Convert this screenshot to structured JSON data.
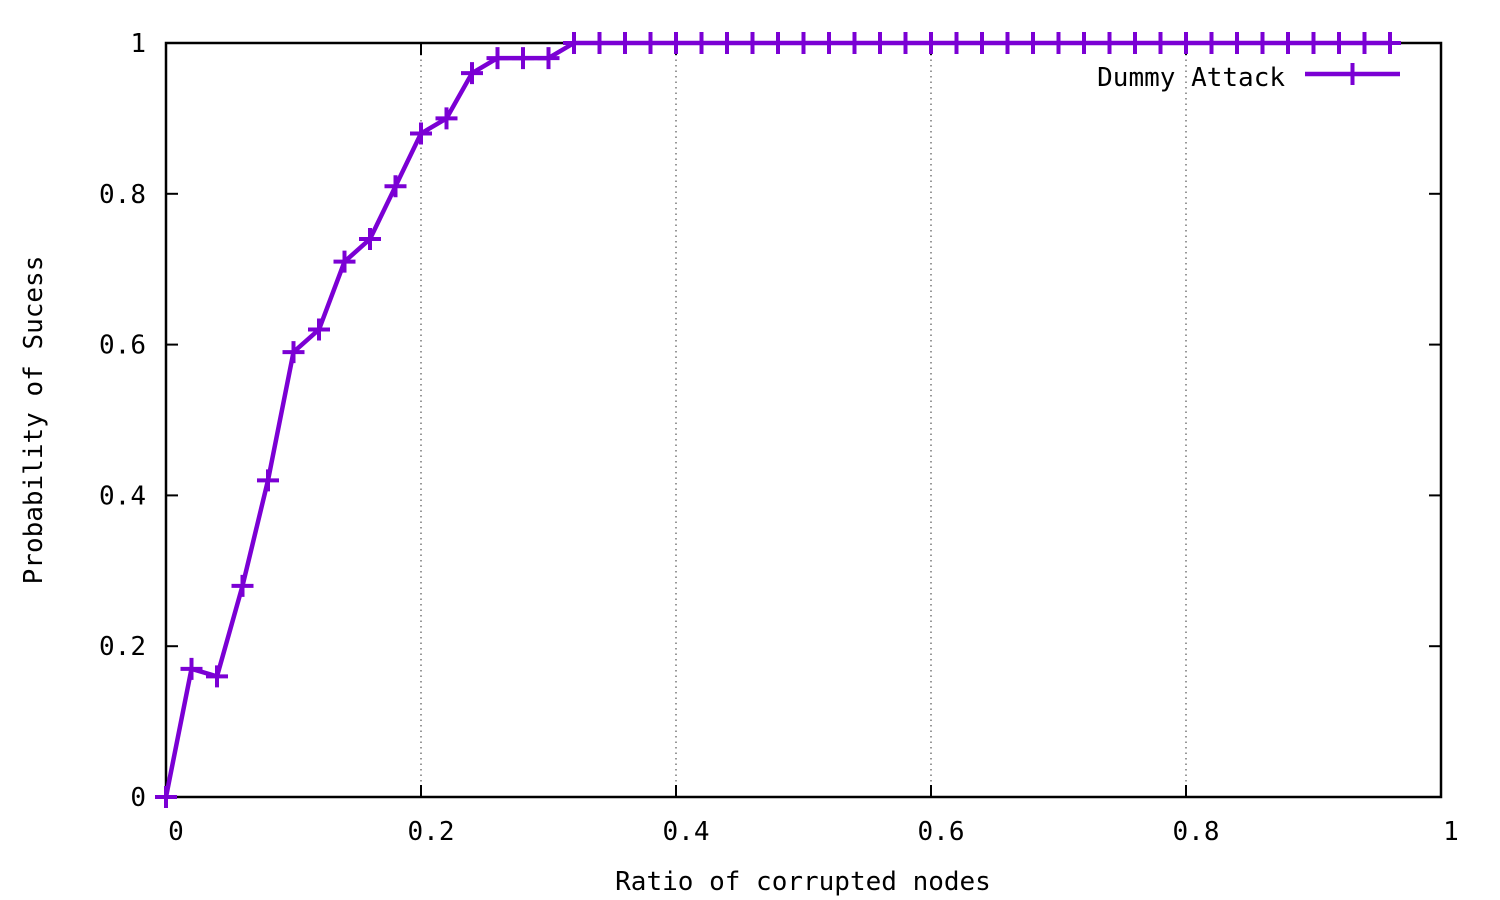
{
  "chart_data": {
    "type": "line",
    "xlabel": "Ratio of corrupted nodes",
    "ylabel": "Probability of Sucess",
    "xlim": [
      0,
      1
    ],
    "ylim": [
      0,
      1
    ],
    "x_ticks": [
      "0",
      "0.2",
      "0.4",
      "0.6",
      "0.8",
      "1"
    ],
    "y_ticks": [
      "0",
      "0.2",
      "0.4",
      "0.6",
      "0.8",
      "1"
    ],
    "grid": "vertical dotted",
    "legend_position": "top-right",
    "series": [
      {
        "name": "Dummy Attack",
        "color": "#7b00d4",
        "marker": "plus",
        "x": [
          0,
          0.02,
          0.04,
          0.06,
          0.08,
          0.1,
          0.12,
          0.14,
          0.16,
          0.18,
          0.2,
          0.22,
          0.24,
          0.26,
          0.28,
          0.3,
          0.32,
          0.34,
          0.36,
          0.38,
          0.4,
          0.42,
          0.44,
          0.46,
          0.48,
          0.5,
          0.52,
          0.54,
          0.56,
          0.58,
          0.6,
          0.62,
          0.64,
          0.66,
          0.68,
          0.7,
          0.72,
          0.74,
          0.76,
          0.78,
          0.8,
          0.82,
          0.84,
          0.86,
          0.88,
          0.9,
          0.92,
          0.94,
          0.96
        ],
        "y": [
          0,
          0.17,
          0.16,
          0.28,
          0.42,
          0.59,
          0.62,
          0.71,
          0.74,
          0.81,
          0.88,
          0.9,
          0.96,
          0.98,
          0.98,
          0.98,
          1,
          1,
          1,
          1,
          1,
          1,
          1,
          1,
          1,
          1,
          1,
          1,
          1,
          1,
          1,
          1,
          1,
          1,
          1,
          1,
          1,
          1,
          1,
          1,
          1,
          1,
          1,
          1,
          1,
          1,
          1,
          1,
          1
        ]
      }
    ]
  }
}
